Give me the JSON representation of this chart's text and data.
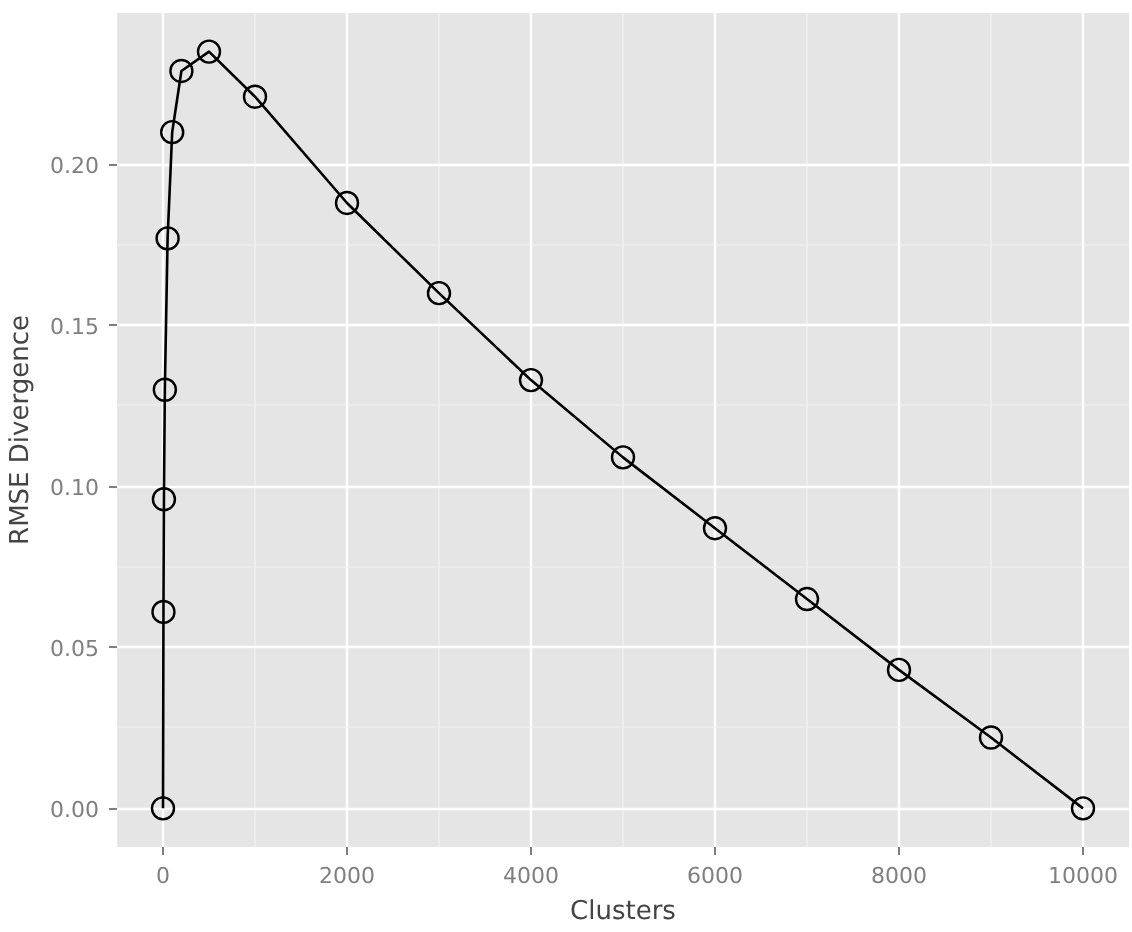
{
  "chart_data": {
    "type": "line",
    "xlabel": "Clusters",
    "ylabel": "RMSE Divergence",
    "x": [
      0,
      5,
      10,
      20,
      50,
      100,
      200,
      500,
      1000,
      2000,
      3000,
      4000,
      5000,
      6000,
      7000,
      8000,
      9000,
      10000
    ],
    "series": [
      {
        "color": "#000000",
        "values": [
          0,
          0.061,
          0.096,
          0.13,
          0.177,
          0.21,
          0.229,
          0.235,
          0.221,
          0.188,
          0.16,
          0.133,
          0.109,
          0.087,
          0.065,
          0.043,
          0.022,
          0
        ]
      }
    ],
    "xlim": [
      -500,
      10500
    ],
    "ylim": [
      -0.012,
      0.247
    ],
    "xticks": [
      0,
      2000,
      4000,
      6000,
      8000,
      10000
    ],
    "yticks": [
      {
        "value": 0,
        "label": "0.00"
      },
      {
        "value": 0.05,
        "label": "0.05"
      },
      {
        "value": 0.1,
        "label": "0.10"
      },
      {
        "value": 0.15,
        "label": "0.15"
      },
      {
        "value": 0.2,
        "label": "0.20"
      }
    ],
    "grid": true,
    "marker": "circle",
    "line_style": "solid"
  }
}
